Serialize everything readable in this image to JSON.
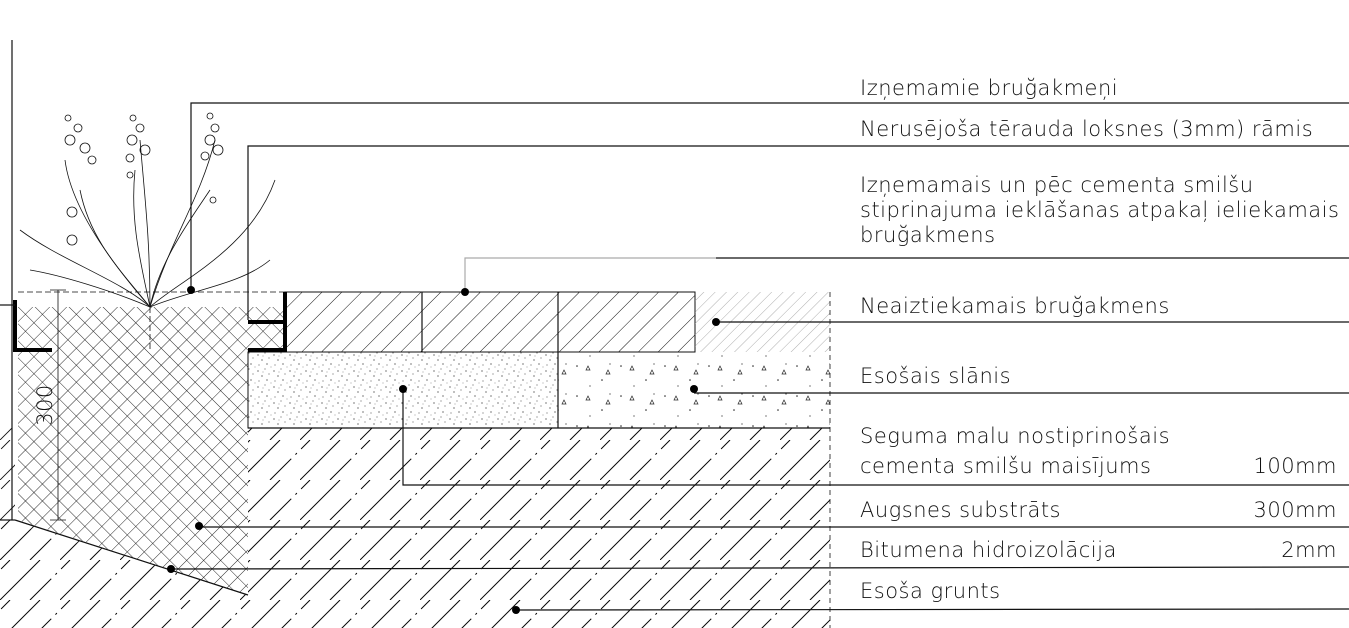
{
  "labels": [
    {
      "lines": [
        "Izņemamie bruğakmeņi"
      ]
    },
    {
      "lines": [
        "Nerusējoša tērauda loksnes (3mm) rāmis"
      ]
    },
    {
      "lines": [
        "Izņemamais un pēc cementa smilšu",
        "stiprinajuma ieklāšanas atpakaļ ieliekamais",
        "bruğakmens"
      ]
    },
    {
      "lines": [
        "Neaiztiekamais bruğakmens"
      ]
    },
    {
      "lines": [
        "Esošais slānis"
      ]
    },
    {
      "lines": [
        "Seguma malu nostiprinošais",
        "cementa smilšu maisījums"
      ],
      "thickness": "100mm"
    },
    {
      "lines": [
        "Augsnes substrāts"
      ],
      "thickness": "300mm"
    },
    {
      "lines": [
        "Bitumena hidroizolācija"
      ],
      "thickness": "2mm"
    },
    {
      "lines": [
        "Esoša grunts"
      ]
    }
  ],
  "dimension": "300"
}
